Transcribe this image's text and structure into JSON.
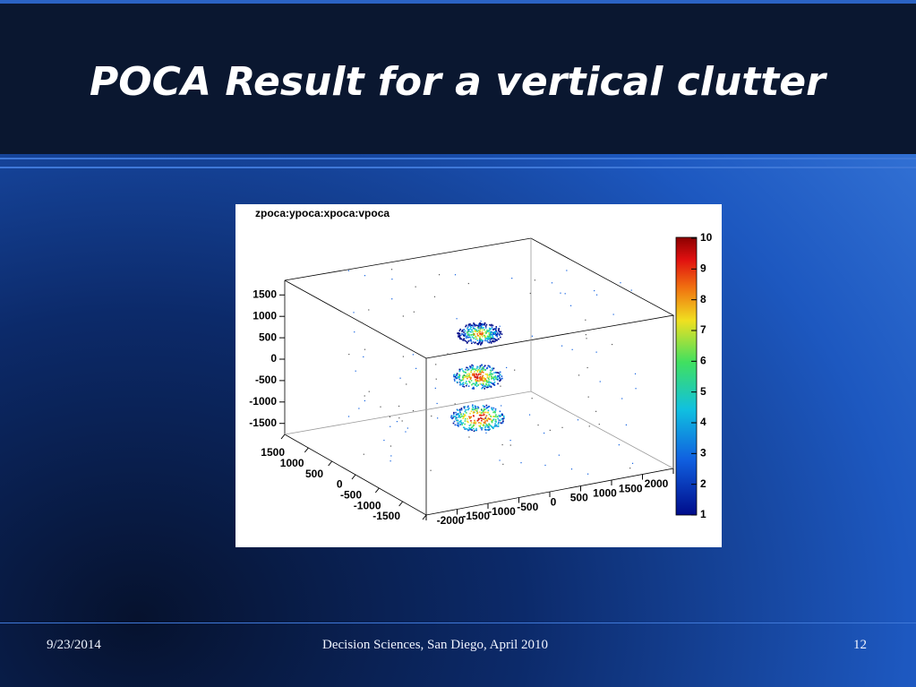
{
  "title": "POCA Result for a vertical clutter",
  "figure": {
    "title": "zpoca:ypoca:xpoca:vpoca",
    "z_ticks": [
      1500,
      1000,
      500,
      0,
      -500,
      -1000,
      -1500
    ],
    "y_ticks": [
      1500,
      1000,
      500,
      0,
      -500,
      -1000,
      -1500
    ],
    "x_ticks": [
      -2000,
      -1500,
      -1000,
      -500,
      0,
      500,
      1000,
      1500,
      2000
    ],
    "color_ticks": [
      1,
      2,
      3,
      4,
      5,
      6,
      7,
      8,
      9,
      10
    ]
  },
  "footer": {
    "date": "9/23/2014",
    "event": "Decision Sciences, San Diego, April 2010",
    "page": "12"
  }
}
